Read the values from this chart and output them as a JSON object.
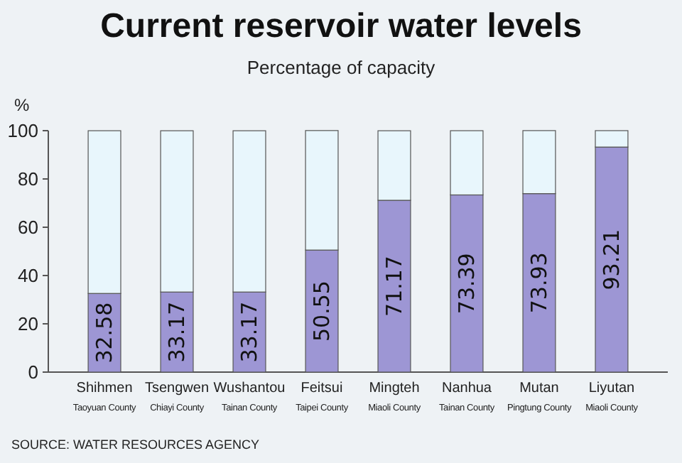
{
  "chart_data": {
    "type": "bar",
    "stacked": true,
    "title": "Current reservoir water levels",
    "subtitle": "Percentage of capacity",
    "ylabel": "%",
    "categories": [
      "Shihmen\nTaoyuan County",
      "Tsengwen\nChiayi County",
      "Wushantou\nTainan County",
      "Feitsui\nTaipei County",
      "Mingteh\nMiaoli County",
      "Nanhua\nTainan County",
      "Mutan\nPingtung County",
      "Liyutan\nMiaoli County"
    ],
    "series": [
      {
        "color": "#9d96d4",
        "values": [
          32.58,
          33.17,
          33.17,
          50.55,
          71.17,
          73.39,
          73.93,
          93.21
        ],
        "value_labels": [
          "32.58",
          "33.17",
          "33.17",
          "50.55",
          "71.17",
          "73.39",
          "73.93",
          "93.21"
        ]
      },
      {
        "color": "#e8f6fc",
        "values": [
          67.4,
          66.8,
          66.8,
          49.5,
          28.8,
          26.6,
          26.1,
          6.8
        ]
      }
    ],
    "ylim": [
      0,
      100
    ],
    "yticks": [
      0,
      20,
      40,
      60,
      80,
      100
    ],
    "annotations": [
      "SOURCE: WATER RESOURCES AGENCY"
    ]
  }
}
